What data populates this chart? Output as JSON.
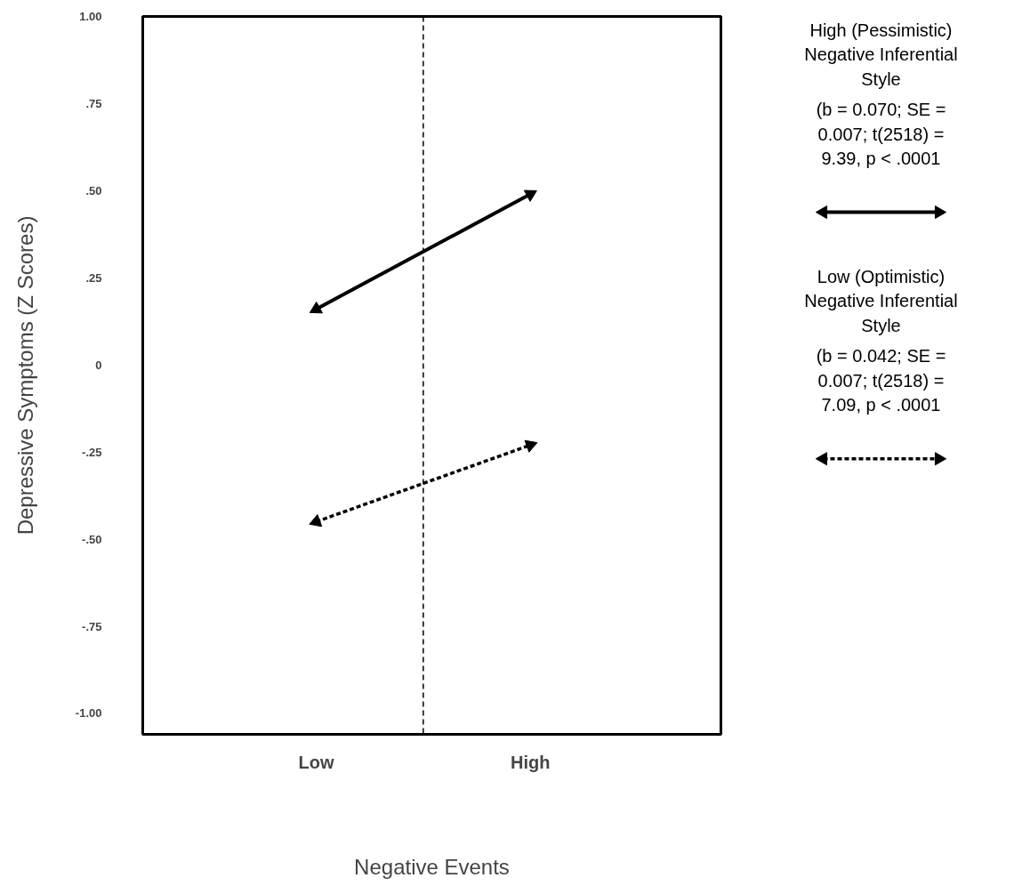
{
  "chart_data": {
    "type": "line",
    "xlabel": "Negative Events",
    "ylabel": "Depressive Symptoms (Z Scores)",
    "categories": [
      "Low",
      "High"
    ],
    "ylim": [
      -1.06,
      1.0
    ],
    "yticks": [
      {
        "value": 1,
        "label": "1.00"
      },
      {
        "value": 0.75,
        "label": ".75"
      },
      {
        "value": 0.5,
        "label": ".50"
      },
      {
        "value": 0.25,
        "label": ".25"
      },
      {
        "value": 0,
        "label": "0"
      },
      {
        "value": -0.25,
        "label": "-.25"
      },
      {
        "value": -0.5,
        "label": "-.50"
      },
      {
        "value": -0.75,
        "label": "-.75"
      },
      {
        "value": -1,
        "label": "-1.00"
      }
    ],
    "grid": false,
    "legend": "right",
    "marker": "triangle",
    "series": [
      {
        "name": "High (Pessimistic)\nNegative Inferential\nStyle",
        "color": "#000000",
        "values": [
          0.16,
          0.49
        ],
        "line_style": "solid"
      },
      {
        "name": "Low (Optimistic)\nNegative Inferential\nStyle",
        "color": "#000000",
        "values": [
          -0.45,
          -0.23
        ],
        "line_style": "dotted"
      }
    ],
    "annotations": [
      "(b = 0.070; SE =\n0.007; t(2518) =\n9.39, p < .0001",
      "(b = 0.042; SE =\n0.007; t(2518) =\n7.09, p < .0001"
    ]
  }
}
